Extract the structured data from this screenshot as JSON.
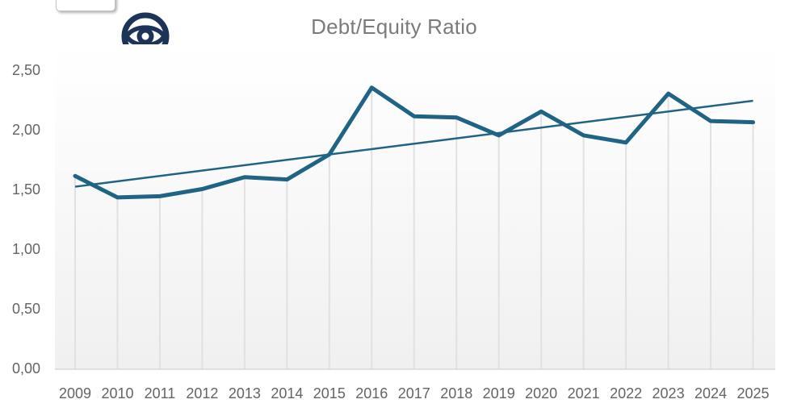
{
  "partial_button": {
    "label": ""
  },
  "icons": {
    "eye_magnifier": "magnifying-glass-with-eye",
    "icon_color": "#1d3357"
  },
  "colors": {
    "line": "#1f6385",
    "trendline": "#1f6385",
    "title_text": "#7b7b7b",
    "axis_text": "#646464",
    "plot_bg_top": "#ffffff",
    "plot_bg_bottom": "#f0f0f0",
    "axis_line": "#d9d9d9",
    "drop_line": "#e1e1e1"
  },
  "chart_data": {
    "type": "line",
    "title": "Debt/Equity Ratio",
    "xlabel": "",
    "ylabel": "",
    "ylim": [
      0,
      2.5
    ],
    "legend": "none",
    "grid": "vertical drop lines from each data point to x-axis",
    "categories": [
      "2009",
      "2010",
      "2011",
      "2012",
      "2013",
      "2014",
      "2015",
      "2016",
      "2017",
      "2018",
      "2019",
      "2020",
      "2021",
      "2022",
      "2023",
      "2024",
      "2025"
    ],
    "series": [
      {
        "name": "Debt/Equity Ratio",
        "values": [
          1.62,
          1.44,
          1.45,
          1.51,
          1.61,
          1.59,
          1.8,
          2.36,
          2.12,
          2.11,
          1.96,
          2.16,
          1.96,
          1.9,
          2.31,
          2.08,
          2.07
        ]
      }
    ],
    "trendline": {
      "name": "Linear trend",
      "start": 1.53,
      "end": 2.25
    },
    "y_ticks": [
      {
        "label": "0,00",
        "value": 0.0
      },
      {
        "label": "0,50",
        "value": 0.5
      },
      {
        "label": "1,00",
        "value": 1.0
      },
      {
        "label": "1,50",
        "value": 1.5
      },
      {
        "label": "2,00",
        "value": 2.0
      },
      {
        "label": "2,50",
        "value": 2.5
      }
    ]
  }
}
